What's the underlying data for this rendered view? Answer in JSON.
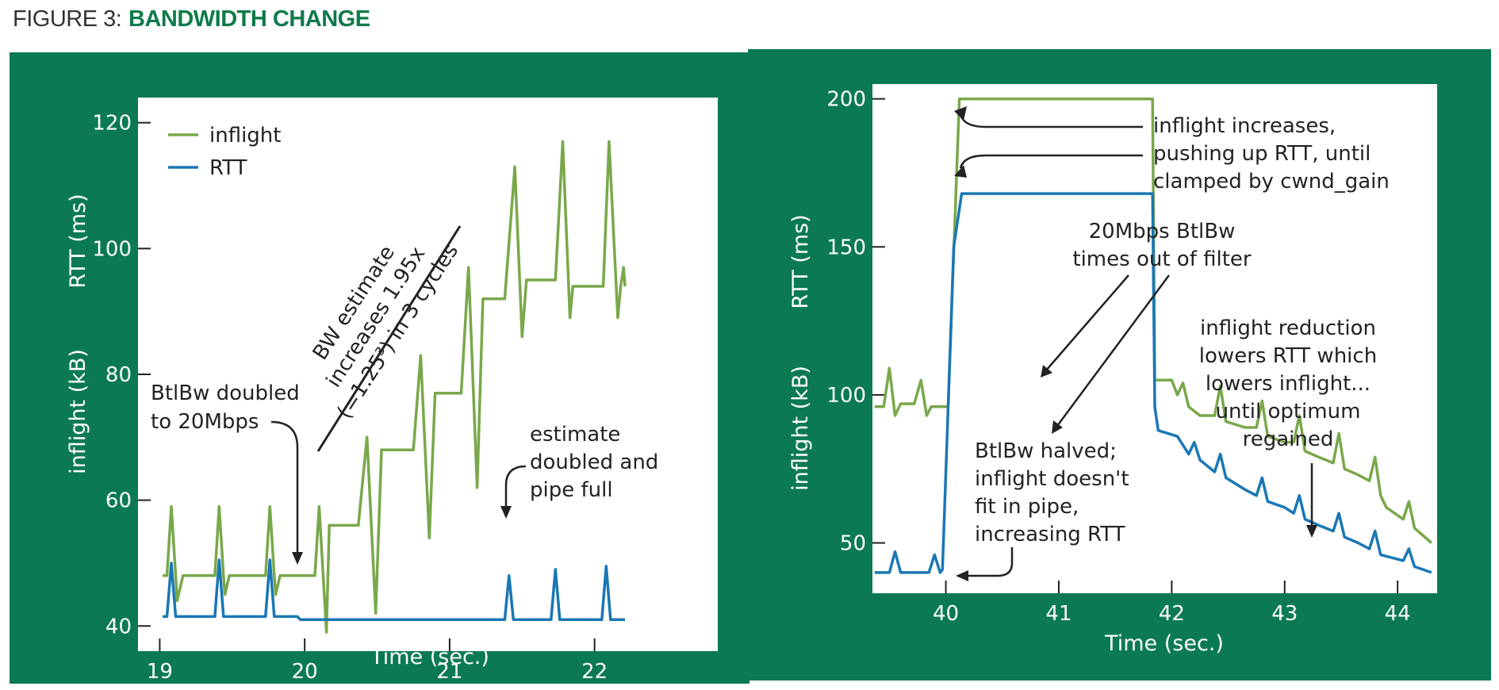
{
  "figure": {
    "prefix": "FIGURE 3:",
    "name": "BANDWIDTH CHANGE"
  },
  "colors": {
    "panel_bg": "#0b7a52",
    "plot_bg": "#ffffff",
    "inflight": "#79a84a",
    "rtt": "#1a77b5",
    "title_accent": "#0f7a4a"
  },
  "chart_data": [
    {
      "type": "line",
      "xlabel": "Time (sec.)",
      "ylabel_top": "RTT (ms)",
      "ylabel_bottom": "inflight (kB)",
      "xlim": [
        18.85,
        22.85
      ],
      "ylim": [
        36,
        124
      ],
      "xticks": [
        19,
        20,
        21,
        22
      ],
      "yticks": [
        40,
        60,
        80,
        100,
        120
      ],
      "grid": false,
      "legend_position": "top-left",
      "series": [
        {
          "name": "inflight",
          "color": "#79a84a",
          "points": [
            [
              19.02,
              48
            ],
            [
              19.05,
              48
            ],
            [
              19.08,
              59
            ],
            [
              19.11,
              48
            ],
            [
              19.12,
              44
            ],
            [
              19.16,
              48
            ],
            [
              19.38,
              48
            ],
            [
              19.41,
              59
            ],
            [
              19.44,
              48
            ],
            [
              19.45,
              45
            ],
            [
              19.48,
              48
            ],
            [
              19.73,
              48
            ],
            [
              19.76,
              59
            ],
            [
              19.79,
              48
            ],
            [
              19.8,
              45
            ],
            [
              19.83,
              48
            ],
            [
              20.07,
              48
            ],
            [
              20.1,
              59
            ],
            [
              20.15,
              39
            ],
            [
              20.17,
              56
            ],
            [
              20.37,
              56
            ],
            [
              20.43,
              70
            ],
            [
              20.49,
              42
            ],
            [
              20.53,
              68
            ],
            [
              20.75,
              68
            ],
            [
              20.8,
              83
            ],
            [
              20.86,
              54
            ],
            [
              20.9,
              77
            ],
            [
              21.08,
              77
            ],
            [
              21.13,
              97
            ],
            [
              21.19,
              62
            ],
            [
              21.23,
              92
            ],
            [
              21.38,
              92
            ],
            [
              21.45,
              113
            ],
            [
              21.5,
              86
            ],
            [
              21.53,
              95
            ],
            [
              21.73,
              95
            ],
            [
              21.78,
              117
            ],
            [
              21.83,
              89
            ],
            [
              21.85,
              94
            ],
            [
              22.06,
              94
            ],
            [
              22.1,
              117
            ],
            [
              22.16,
              89
            ],
            [
              22.18,
              94
            ],
            [
              22.2,
              97
            ],
            [
              22.21,
              94
            ]
          ]
        },
        {
          "name": "RTT",
          "color": "#1a77b5",
          "points": [
            [
              19.02,
              41.5
            ],
            [
              19.05,
              41.5
            ],
            [
              19.08,
              50
            ],
            [
              19.11,
              41.5
            ],
            [
              19.38,
              41.5
            ],
            [
              19.41,
              50.5
            ],
            [
              19.44,
              41.5
            ],
            [
              19.73,
              41.5
            ],
            [
              19.76,
              50.5
            ],
            [
              19.79,
              41.5
            ],
            [
              19.95,
              41.5
            ],
            [
              19.97,
              41
            ],
            [
              21.38,
              41
            ],
            [
              21.41,
              48
            ],
            [
              21.44,
              41
            ],
            [
              21.7,
              41
            ],
            [
              21.73,
              49
            ],
            [
              21.76,
              41
            ],
            [
              22.05,
              41
            ],
            [
              22.08,
              49.5
            ],
            [
              22.11,
              41
            ],
            [
              22.21,
              41
            ]
          ]
        }
      ]
    },
    {
      "type": "line",
      "xlabel": "Time (sec.)",
      "ylabel_top": "RTT (ms)",
      "ylabel_bottom": "inflight (kB)",
      "xlim": [
        39.35,
        44.35
      ],
      "ylim": [
        33,
        205
      ],
      "xticks": [
        40,
        41,
        42,
        43,
        44
      ],
      "yticks": [
        50,
        100,
        150,
        200
      ],
      "grid": false,
      "series": [
        {
          "name": "inflight",
          "color": "#79a84a",
          "points": [
            [
              39.37,
              96
            ],
            [
              39.45,
              96
            ],
            [
              39.5,
              109
            ],
            [
              39.55,
              93
            ],
            [
              39.6,
              97
            ],
            [
              39.72,
              97
            ],
            [
              39.78,
              105
            ],
            [
              39.83,
              93
            ],
            [
              39.87,
              96
            ],
            [
              40.02,
              96
            ],
            [
              40.12,
              200
            ],
            [
              41.83,
              200
            ],
            [
              41.85,
              105
            ],
            [
              42.0,
              105
            ],
            [
              42.05,
              100
            ],
            [
              42.1,
              104
            ],
            [
              42.15,
              96
            ],
            [
              42.25,
              93
            ],
            [
              42.38,
              93
            ],
            [
              42.43,
              103
            ],
            [
              42.48,
              91
            ],
            [
              42.65,
              89
            ],
            [
              42.75,
              89
            ],
            [
              42.8,
              98
            ],
            [
              42.85,
              86
            ],
            [
              43.0,
              84
            ],
            [
              43.08,
              84
            ],
            [
              43.13,
              93
            ],
            [
              43.18,
              81
            ],
            [
              43.3,
              79
            ],
            [
              43.43,
              77
            ],
            [
              43.48,
              87
            ],
            [
              43.53,
              75
            ],
            [
              43.65,
              73
            ],
            [
              43.75,
              71
            ],
            [
              43.8,
              79
            ],
            [
              43.85,
              66
            ],
            [
              43.9,
              62
            ],
            [
              44.05,
              58
            ],
            [
              44.1,
              64
            ],
            [
              44.15,
              55
            ],
            [
              44.3,
              50
            ]
          ]
        },
        {
          "name": "RTT",
          "color": "#1a77b5",
          "points": [
            [
              39.37,
              40
            ],
            [
              39.5,
              40
            ],
            [
              39.55,
              47
            ],
            [
              39.6,
              40
            ],
            [
              39.85,
              40
            ],
            [
              39.9,
              46
            ],
            [
              39.95,
              40
            ],
            [
              39.97,
              41
            ],
            [
              40.07,
              150
            ],
            [
              40.14,
              168
            ],
            [
              41.83,
              168
            ],
            [
              41.85,
              96
            ],
            [
              41.88,
              88
            ],
            [
              42.05,
              86
            ],
            [
              42.15,
              80
            ],
            [
              42.2,
              84
            ],
            [
              42.25,
              78
            ],
            [
              42.38,
              74
            ],
            [
              42.43,
              80
            ],
            [
              42.48,
              72
            ],
            [
              42.65,
              68
            ],
            [
              42.75,
              66
            ],
            [
              42.8,
              72
            ],
            [
              42.85,
              64
            ],
            [
              43.0,
              62
            ],
            [
              43.08,
              60
            ],
            [
              43.13,
              66
            ],
            [
              43.18,
              58
            ],
            [
              43.3,
              56
            ],
            [
              43.43,
              54
            ],
            [
              43.48,
              60
            ],
            [
              43.53,
              52
            ],
            [
              43.65,
              50
            ],
            [
              43.75,
              48
            ],
            [
              43.8,
              54
            ],
            [
              43.85,
              46
            ],
            [
              43.95,
              45
            ],
            [
              44.05,
              44
            ],
            [
              44.1,
              48
            ],
            [
              44.15,
              42
            ],
            [
              44.3,
              40
            ]
          ]
        }
      ]
    }
  ],
  "annotations": {
    "left": {
      "bw_estimate": [
        "BW estimate",
        "increases 1.95x",
        "(=1.25³) in 3 cycles"
      ],
      "btlbw_doubled": [
        "BtlBw doubled",
        "to 20Mbps"
      ],
      "estimate_doubled": [
        "estimate",
        "doubled and",
        "pipe full"
      ]
    },
    "right": {
      "inflight_increases": [
        "inflight increases,",
        "pushing up RTT, until",
        "clamped by cwnd_gain"
      ],
      "timeout": [
        "20Mbps BtlBw",
        "times out of filter"
      ],
      "reduction": [
        "inflight reduction",
        "lowers RTT which",
        "lowers inflight...",
        "until optimum",
        "regained"
      ],
      "halved": [
        "BtlBw halved;",
        "inflight doesn't",
        "fit in pipe,",
        "increasing RTT"
      ]
    }
  }
}
